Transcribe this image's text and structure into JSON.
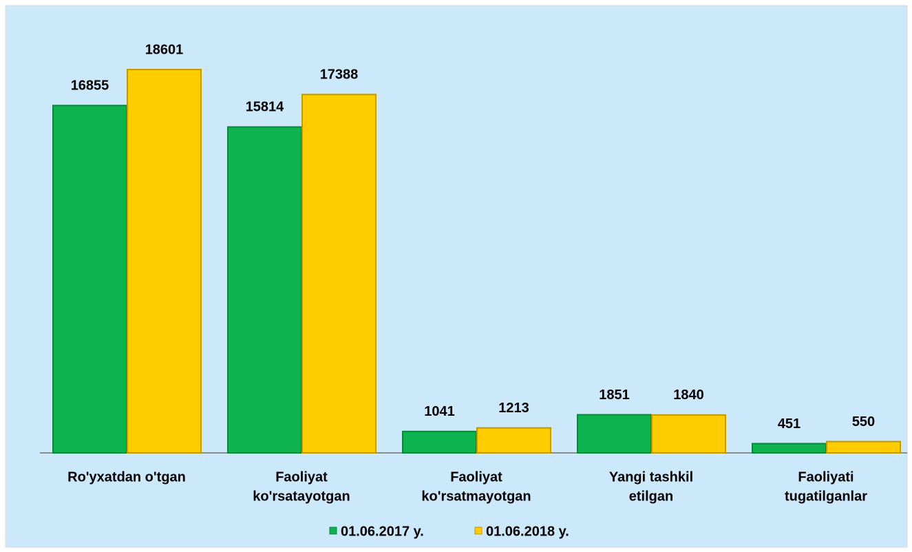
{
  "chart_data": {
    "type": "bar",
    "categories": [
      [
        "Ro'yxatdan  o'tgan"
      ],
      [
        "Faoliyat",
        "ko'rsatayotgan"
      ],
      [
        "Faoliyat",
        "ko'rsatmayotgan"
      ],
      [
        "Yangi tashkil",
        "etilgan"
      ],
      [
        "Faoliyati",
        "tugatilganlar"
      ]
    ],
    "series": [
      {
        "name": "01.06.2017 y.",
        "color": "#0db34f",
        "values": [
          16855,
          15814,
          1041,
          1851,
          451
        ]
      },
      {
        "name": "01.06.2018 y.",
        "color": "#ffcc00",
        "values": [
          18601,
          17388,
          1213,
          1840,
          550
        ]
      }
    ],
    "legend": "bottom"
  }
}
